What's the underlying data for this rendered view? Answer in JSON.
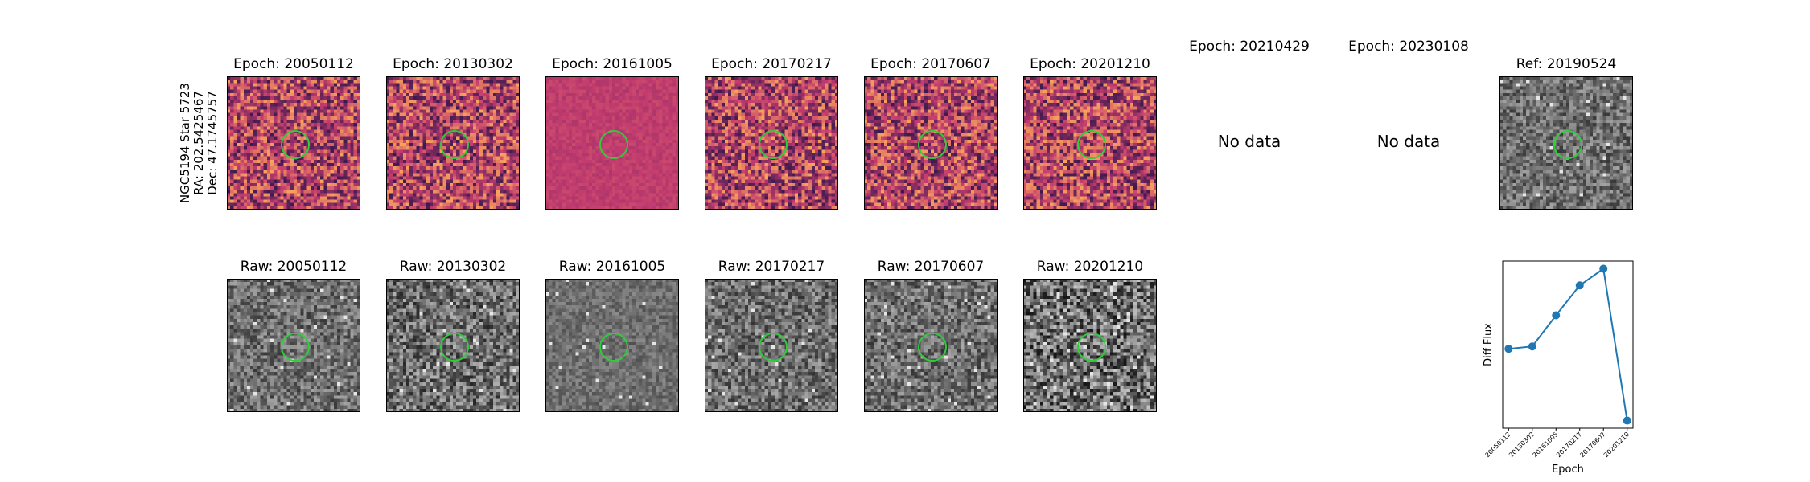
{
  "target": {
    "name": "NGC5194 Star 5723",
    "ra": "RA: 202.5425467",
    "dec": "Dec: 47.1745757"
  },
  "diff_panels": [
    {
      "title": "Epoch: 20050112",
      "has_data": true
    },
    {
      "title": "Epoch: 20130302",
      "has_data": true
    },
    {
      "title": "Epoch: 20161005",
      "has_data": true
    },
    {
      "title": "Epoch: 20170217",
      "has_data": true
    },
    {
      "title": "Epoch: 20170607",
      "has_data": true
    },
    {
      "title": "Epoch: 20201210",
      "has_data": true
    },
    {
      "title": "Epoch: 20210429",
      "has_data": false,
      "message": "No data"
    },
    {
      "title": "Epoch: 20230108",
      "has_data": false,
      "message": "No data"
    }
  ],
  "ref_panel": {
    "title": "Ref: 20190524"
  },
  "raw_panels": [
    {
      "title": "Raw: 20050112"
    },
    {
      "title": "Raw: 20130302"
    },
    {
      "title": "Raw: 20161005"
    },
    {
      "title": "Raw: 20170217"
    },
    {
      "title": "Raw: 20170607"
    },
    {
      "title": "Raw: 20201210"
    }
  ],
  "colors": {
    "aperture": "#31cc3c",
    "line": "#1f77b4",
    "diff_low": "#3b1a4f",
    "diff_mid": "#c23b6f",
    "diff_high": "#f8a35b"
  },
  "chart_data": {
    "type": "line",
    "xlabel": "Epoch",
    "ylabel": "Diff Flux",
    "categories": [
      "20050112",
      "20130302",
      "20161005",
      "20170217",
      "20170607",
      "20201210"
    ],
    "values": [
      0.25,
      0.27,
      0.53,
      0.78,
      0.92,
      -0.35
    ],
    "y_tick_labels_shown": false,
    "grid": false,
    "legend": "none"
  }
}
